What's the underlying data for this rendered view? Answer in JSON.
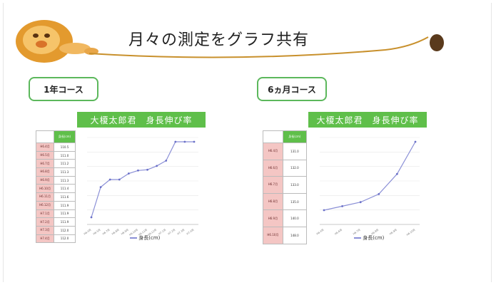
{
  "header": {
    "title": "月々の測定をグラフ共有",
    "mascot": "lion-icon"
  },
  "course1": {
    "label": "1年コース",
    "chart_title": "大榎太郎君　身長伸び率",
    "table_header": "身長(cm)",
    "rows": [
      {
        "month": "H6.4月",
        "value": "110.5"
      },
      {
        "month": "H6.5月",
        "value": "111.0"
      },
      {
        "month": "H6.7月",
        "value": "111.2"
      },
      {
        "month": "H6.8月",
        "value": "111.3"
      },
      {
        "month": "H6.9月",
        "value": "111.3"
      },
      {
        "month": "H6.10月",
        "value": "111.4"
      },
      {
        "month": "H6.11月",
        "value": "111.6"
      },
      {
        "month": "H6.12月",
        "value": "111.9"
      },
      {
        "month": "H7.1月",
        "value": "111.9"
      },
      {
        "month": "H7.2月",
        "value": "111.9"
      },
      {
        "month": "H7.3月",
        "value": "112.0"
      },
      {
        "month": "H7.4月",
        "value": "112.0"
      }
    ],
    "legend": "身長(cm)"
  },
  "course2": {
    "label": "6ヵ月コース",
    "chart_title": "大榎太郎君　身長伸び率",
    "table_header": "身長(cm)",
    "rows": [
      {
        "month": "H6.4月",
        "value": "131.0"
      },
      {
        "month": "H6.6月",
        "value": "132.0"
      },
      {
        "month": "H6.7月",
        "value": "133.0"
      },
      {
        "month": "H6.8月",
        "value": "135.0"
      },
      {
        "month": "H6.9月",
        "value": "140.0"
      },
      {
        "month": "H6.10月",
        "value": "148.0"
      }
    ],
    "legend": "身長(cm)"
  },
  "chart_data": [
    {
      "type": "line",
      "title": "大榎太郎君　身長伸び率",
      "series": [
        {
          "name": "身長(cm)",
          "values": [
            110.5,
            111.0,
            111.2,
            111.3,
            111.3,
            111.4,
            111.6,
            111.9,
            111.9,
            111.9,
            112.0,
            112.0
          ]
        }
      ],
      "y_shape": [
        0.0,
        0.4,
        0.5,
        0.5,
        0.58,
        0.62,
        0.63,
        0.68,
        0.75,
        1.0,
        1.0,
        1.0
      ],
      "legend": "bottom"
    },
    {
      "type": "line",
      "title": "大榎太郎君　身長伸び率",
      "series": [
        {
          "name": "身長(cm)",
          "values": [
            131.0,
            132.0,
            133.0,
            135.0,
            140.0,
            148.0
          ]
        }
      ],
      "legend": "bottom"
    }
  ],
  "colors": {
    "accent_green": "#5fbf4a",
    "month_cell": "#f4c6c4",
    "line": "#8a8fd6",
    "header_line": "#c8902c"
  }
}
